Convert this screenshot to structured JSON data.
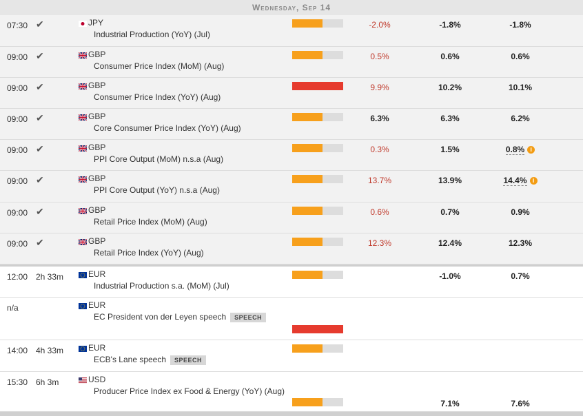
{
  "header": {
    "date_label": "Wednesday, Sep 14"
  },
  "events": [
    {
      "time": "07:30",
      "status": "check",
      "currency": "JPY",
      "flag": "jp",
      "name": "Industrial Production (YoY) (Jul)",
      "impact": 0.6,
      "impact_level": "medium",
      "actual": "-2.0%",
      "actual_color": "red",
      "consensus": "-1.8%",
      "previous": "-1.8%",
      "revised": false
    },
    {
      "time": "09:00",
      "status": "check",
      "currency": "GBP",
      "flag": "gb",
      "name": "Consumer Price Index (MoM) (Aug)",
      "impact": 0.6,
      "impact_level": "medium",
      "actual": "0.5%",
      "actual_color": "red",
      "consensus": "0.6%",
      "previous": "0.6%",
      "revised": false
    },
    {
      "time": "09:00",
      "status": "check",
      "currency": "GBP",
      "flag": "gb",
      "name": "Consumer Price Index (YoY) (Aug)",
      "impact": 1.0,
      "impact_level": "high",
      "actual": "9.9%",
      "actual_color": "red",
      "consensus": "10.2%",
      "previous": "10.1%",
      "revised": false
    },
    {
      "time": "09:00",
      "status": "check",
      "currency": "GBP",
      "flag": "gb",
      "name": "Core Consumer Price Index (YoY) (Aug)",
      "impact": 0.6,
      "impact_level": "medium",
      "actual": "6.3%",
      "actual_color": "black",
      "consensus": "6.3%",
      "previous": "6.2%",
      "revised": false
    },
    {
      "time": "09:00",
      "status": "check",
      "currency": "GBP",
      "flag": "gb",
      "name": "PPI Core Output (MoM) n.s.a (Aug)",
      "impact": 0.6,
      "impact_level": "medium",
      "actual": "0.3%",
      "actual_color": "red",
      "consensus": "1.5%",
      "previous": "0.8%",
      "revised": true
    },
    {
      "time": "09:00",
      "status": "check",
      "currency": "GBP",
      "flag": "gb",
      "name": "PPI Core Output (YoY) n.s.a (Aug)",
      "impact": 0.6,
      "impact_level": "medium",
      "actual": "13.7%",
      "actual_color": "red",
      "consensus": "13.9%",
      "previous": "14.4%",
      "revised": true
    },
    {
      "time": "09:00",
      "status": "check",
      "currency": "GBP",
      "flag": "gb",
      "name": "Retail Price Index (MoM) (Aug)",
      "impact": 0.6,
      "impact_level": "medium",
      "actual": "0.6%",
      "actual_color": "red",
      "consensus": "0.7%",
      "previous": "0.9%",
      "revised": false
    },
    {
      "time": "09:00",
      "status": "check",
      "currency": "GBP",
      "flag": "gb",
      "name": "Retail Price Index (YoY) (Aug)",
      "impact": 0.6,
      "impact_level": "medium",
      "actual": "12.3%",
      "actual_color": "red",
      "consensus": "12.4%",
      "previous": "12.3%",
      "revised": false
    },
    {
      "time": "12:00",
      "countdown": "2h 33m",
      "currency": "EUR",
      "flag": "eu",
      "name": "Industrial Production s.a. (MoM) (Jul)",
      "impact": 0.6,
      "impact_level": "medium",
      "actual": "",
      "consensus": "-1.0%",
      "previous": "0.7%",
      "revised": false
    },
    {
      "time": "n/a",
      "countdown": "",
      "currency": "EUR",
      "flag": "eu",
      "name": "EC President von der Leyen speech",
      "tag": "SPEECH",
      "impact": 1.0,
      "impact_level": "high",
      "actual": "",
      "consensus": "",
      "previous": "",
      "revised": false
    },
    {
      "time": "14:00",
      "countdown": "4h 33m",
      "currency": "EUR",
      "flag": "eu",
      "name": "ECB's Lane speech",
      "tag": "SPEECH",
      "impact": 0.6,
      "impact_level": "medium",
      "actual": "",
      "consensus": "",
      "previous": "",
      "revised": false
    },
    {
      "time": "15:30",
      "countdown": "6h 3m",
      "currency": "USD",
      "flag": "us",
      "name": "Producer Price Index ex Food & Energy (YoY) (Aug)",
      "impact": 0.6,
      "impact_level": "medium",
      "actual": "",
      "consensus": "7.1%",
      "previous": "7.6%",
      "revised": false
    }
  ],
  "colors": {
    "medium": "#f7a01c",
    "high": "#e63b2e",
    "actual_red": "#c0392b"
  }
}
